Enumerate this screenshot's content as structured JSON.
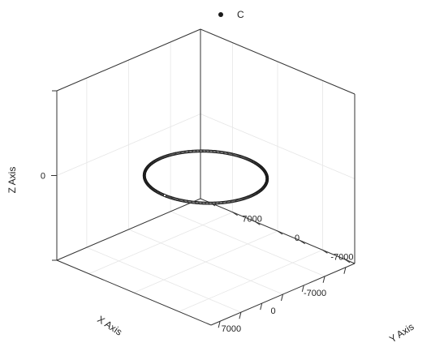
{
  "chart_data": {
    "type": "scatter",
    "projection": "3d",
    "title": "",
    "legend": {
      "position": "top-center",
      "entries": [
        "C"
      ]
    },
    "series": [
      {
        "name": "C",
        "marker": "circle",
        "color": "#1a1a1a",
        "shape": "ring in the horizontal plane z = 0",
        "center": [
          0,
          0,
          0
        ],
        "radius": 7000,
        "point_count": 360
      }
    ],
    "xlabel": "X Axis",
    "ylabel": "Y Axis",
    "zlabel": "Z Axis",
    "x_ticks": [
      -7000,
      0,
      7000
    ],
    "y_ticks": [
      -7000,
      0,
      7000
    ],
    "z_ticks": [
      0
    ],
    "xlim": [
      -12000,
      12000
    ],
    "ylim": [
      -12000,
      12000
    ],
    "zlim": [
      -1,
      1
    ],
    "grid": true,
    "axis_color": "#333333",
    "grid_color": "#e6e6e6"
  }
}
